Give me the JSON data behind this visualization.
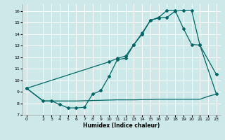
{
  "xlabel": "Humidex (Indice chaleur)",
  "bg_color": "#cce8e8",
  "grid_color": "#ffffff",
  "line_color": "#006666",
  "xlim": [
    -0.5,
    23.5
  ],
  "ylim": [
    7,
    16.6
  ],
  "xticks": [
    0,
    2,
    3,
    4,
    5,
    6,
    7,
    8,
    9,
    10,
    11,
    12,
    13,
    14,
    15,
    16,
    17,
    18,
    19,
    20,
    21,
    22,
    23
  ],
  "yticks": [
    7,
    8,
    9,
    10,
    11,
    12,
    13,
    14,
    15,
    16
  ],
  "line1_x": [
    0,
    2,
    3,
    4,
    5,
    6,
    7,
    8,
    9,
    10,
    11,
    12,
    13,
    14,
    15,
    16,
    17,
    18,
    19,
    20,
    21,
    23
  ],
  "line1_y": [
    9.3,
    8.2,
    8.2,
    7.9,
    7.6,
    7.6,
    7.65,
    8.8,
    9.1,
    10.35,
    11.8,
    11.9,
    13.1,
    14.0,
    15.2,
    15.4,
    15.45,
    16.0,
    16.05,
    16.05,
    13.05,
    8.8
  ],
  "line2_x": [
    0,
    10,
    11,
    12,
    13,
    14,
    15,
    16,
    17,
    18,
    19,
    20,
    21,
    23
  ],
  "line2_y": [
    9.3,
    11.6,
    11.9,
    12.1,
    13.1,
    14.1,
    15.2,
    15.45,
    16.05,
    16.05,
    14.5,
    13.1,
    13.05,
    10.5
  ],
  "line3_x": [
    0,
    2,
    3,
    4,
    5,
    6,
    7,
    8,
    9,
    10,
    11,
    12,
    13,
    14,
    15,
    16,
    17,
    18,
    19,
    20,
    21,
    22,
    23
  ],
  "line3_y": [
    9.3,
    8.2,
    8.2,
    8.2,
    8.2,
    8.2,
    8.22,
    8.24,
    8.26,
    8.28,
    8.3,
    8.3,
    8.3,
    8.32,
    8.33,
    8.35,
    8.35,
    8.35,
    8.35,
    8.35,
    8.35,
    8.6,
    8.8
  ]
}
